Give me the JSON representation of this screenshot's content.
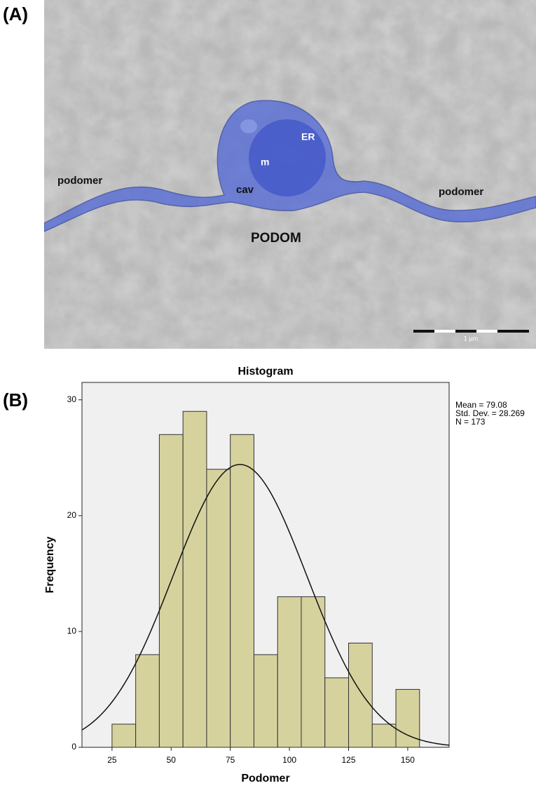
{
  "panels": {
    "a": "(A)",
    "b": "(B)"
  },
  "micrograph": {
    "labels": [
      "podomer",
      "ER",
      "m",
      "cav",
      "podomer",
      "PODOM"
    ],
    "scale_bar": "1 µm"
  },
  "chart_data": {
    "type": "histogram",
    "title": "Histogram",
    "x_label": "Podomer",
    "y_label": "Frequency",
    "bins": [
      25,
      35,
      45,
      55,
      65,
      75,
      85,
      95,
      105,
      115,
      125,
      135,
      145,
      155
    ],
    "values": [
      2,
      8,
      27,
      29,
      24,
      27,
      8,
      13,
      13,
      6,
      9,
      2,
      5
    ],
    "color": "#d6d29e",
    "stats": [
      {
        "value": 79.08,
        "label": "Mean = 79.08"
      },
      {
        "value": 28.269,
        "label": "Std. Dev. = 28.269"
      },
      {
        "value": 173,
        "label": "N = 173"
      }
    ],
    "xlim": [
      12.3,
      167.5
    ],
    "xticks": [
      25,
      50,
      75,
      100,
      125,
      150
    ],
    "ylim": [
      0,
      31.5
    ],
    "yticks": [
      0,
      10,
      20,
      30
    ]
  }
}
